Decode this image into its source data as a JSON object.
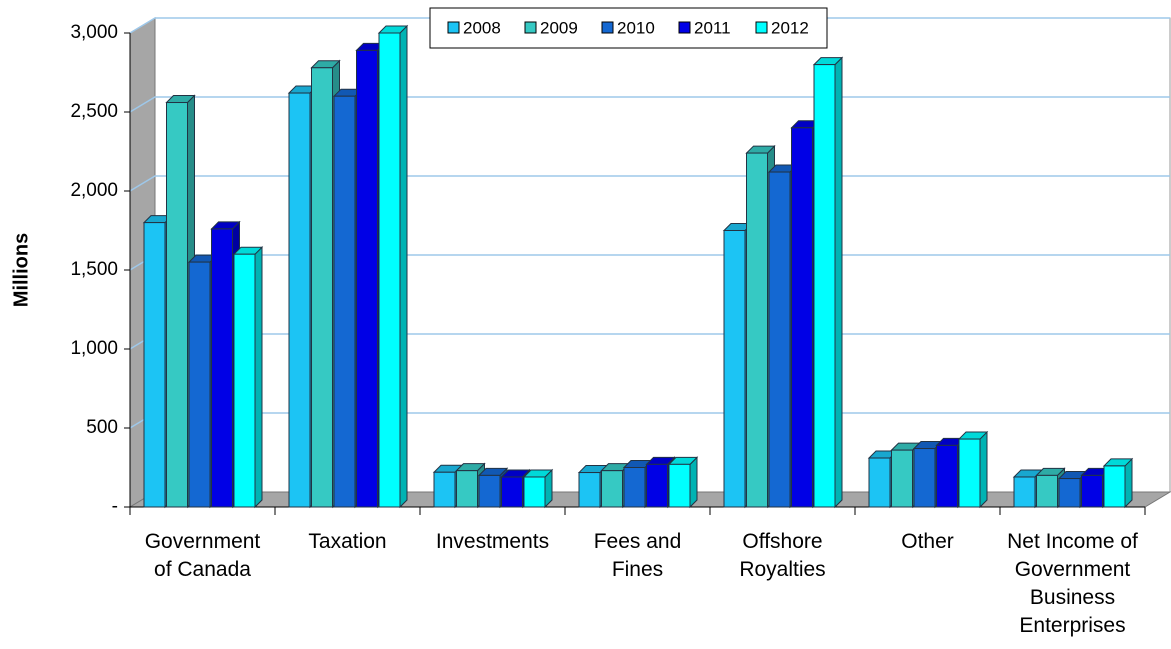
{
  "chart_data": {
    "type": "bar3d",
    "y_label": "Millions",
    "categories": [
      [
        "Government",
        "of Canada"
      ],
      [
        "Taxation"
      ],
      [
        "Investments"
      ],
      [
        "Fees and",
        "Fines"
      ],
      [
        "Offshore",
        "Royalties"
      ],
      [
        "Other"
      ],
      [
        "Net Income of",
        "Government",
        "Business",
        "Enterprises"
      ]
    ],
    "series": [
      {
        "name": "2008",
        "color": "#1cc4f4",
        "values": [
          1800,
          2620,
          220,
          218,
          1750,
          310,
          190
        ]
      },
      {
        "name": "2009",
        "color": "#36c9c3",
        "values": [
          2560,
          2780,
          230,
          230,
          2240,
          360,
          200
        ]
      },
      {
        "name": "2010",
        "color": "#1468d2",
        "values": [
          1550,
          2600,
          200,
          250,
          2120,
          370,
          180
        ]
      },
      {
        "name": "2011",
        "color": "#0000e6",
        "values": [
          1760,
          2890,
          190,
          270,
          2400,
          390,
          200
        ]
      },
      {
        "name": "2012",
        "color": "#00ffff",
        "values": [
          1600,
          3000,
          190,
          270,
          2800,
          430,
          260
        ]
      }
    ],
    "ylim": [
      0,
      3000
    ],
    "yticks": [
      {
        "value": 0,
        "label": "-"
      },
      500,
      {
        "value": 1000,
        "label": "1,000"
      },
      {
        "value": 1500,
        "label": "1,500"
      },
      {
        "value": 2000,
        "label": "2,000"
      },
      {
        "value": 2500,
        "label": "2,500"
      },
      {
        "value": 3000,
        "label": "3,000"
      }
    ],
    "grid": true,
    "legend": "top"
  }
}
